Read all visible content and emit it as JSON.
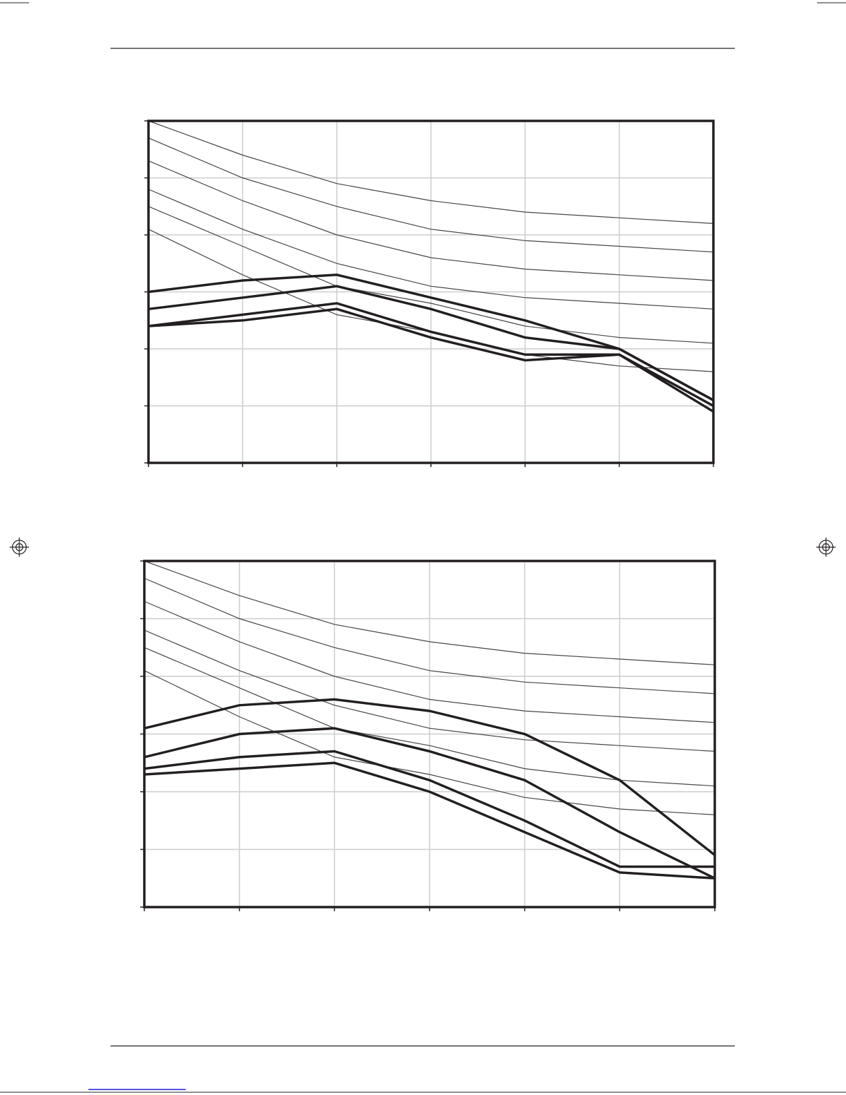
{
  "colors": {
    "ink": "#231f20",
    "grid": "#cccccc",
    "thin_line": "#444444",
    "link": "#1b1bd0"
  },
  "chart_data": [
    {
      "type": "line",
      "title": "",
      "xlabel": "",
      "ylabel": "",
      "x": [
        0,
        1,
        2,
        3,
        4,
        5,
        6
      ],
      "xlim": [
        0,
        6
      ],
      "ylim": [
        0,
        6
      ],
      "grid": true,
      "series": [
        {
          "style": "thin",
          "values": [
            6.0,
            5.4,
            4.9,
            4.6,
            4.4,
            4.3,
            4.2
          ]
        },
        {
          "style": "thin",
          "values": [
            5.7,
            5.0,
            4.5,
            4.1,
            3.9,
            3.8,
            3.7
          ]
        },
        {
          "style": "thin",
          "values": [
            5.3,
            4.6,
            4.0,
            3.6,
            3.4,
            3.3,
            3.2
          ]
        },
        {
          "style": "thin",
          "values": [
            4.8,
            4.1,
            3.5,
            3.1,
            2.9,
            2.8,
            2.7
          ]
        },
        {
          "style": "thin",
          "values": [
            4.5,
            3.8,
            3.1,
            2.8,
            2.4,
            2.2,
            2.1
          ]
        },
        {
          "style": "thin",
          "values": [
            4.1,
            3.3,
            2.6,
            2.3,
            1.9,
            1.7,
            1.6
          ]
        },
        {
          "style": "thick",
          "values": [
            3.0,
            3.2,
            3.3,
            2.9,
            2.5,
            2.0,
            1.1
          ]
        },
        {
          "style": "thick",
          "values": [
            2.7,
            2.9,
            3.1,
            2.7,
            2.2,
            2.0,
            1.1
          ]
        },
        {
          "style": "thick",
          "values": [
            2.4,
            2.6,
            2.8,
            2.3,
            1.9,
            1.9,
            0.9
          ]
        },
        {
          "style": "thick",
          "values": [
            2.4,
            2.5,
            2.7,
            2.2,
            1.8,
            1.9,
            1.0
          ]
        }
      ]
    },
    {
      "type": "line",
      "title": "",
      "xlabel": "",
      "ylabel": "",
      "x": [
        0,
        1,
        2,
        3,
        4,
        5,
        6
      ],
      "xlim": [
        0,
        6
      ],
      "ylim": [
        0,
        6
      ],
      "grid": true,
      "series": [
        {
          "style": "thin",
          "values": [
            6.0,
            5.4,
            4.9,
            4.6,
            4.4,
            4.3,
            4.2
          ]
        },
        {
          "style": "thin",
          "values": [
            5.7,
            5.0,
            4.5,
            4.1,
            3.9,
            3.8,
            3.7
          ]
        },
        {
          "style": "thin",
          "values": [
            5.3,
            4.6,
            4.0,
            3.6,
            3.4,
            3.3,
            3.2
          ]
        },
        {
          "style": "thin",
          "values": [
            4.8,
            4.1,
            3.5,
            3.1,
            2.9,
            2.8,
            2.7
          ]
        },
        {
          "style": "thin",
          "values": [
            4.5,
            3.8,
            3.1,
            2.8,
            2.4,
            2.2,
            2.1
          ]
        },
        {
          "style": "thin",
          "values": [
            4.1,
            3.3,
            2.6,
            2.3,
            1.9,
            1.7,
            1.6
          ]
        },
        {
          "style": "thick",
          "values": [
            3.1,
            3.5,
            3.6,
            3.4,
            3.0,
            2.2,
            0.9
          ]
        },
        {
          "style": "thick",
          "values": [
            2.6,
            3.0,
            3.1,
            2.7,
            2.2,
            1.3,
            0.5
          ]
        },
        {
          "style": "thick",
          "values": [
            2.4,
            2.6,
            2.7,
            2.2,
            1.5,
            0.7,
            0.7
          ]
        },
        {
          "style": "thick",
          "values": [
            2.3,
            2.4,
            2.5,
            2.0,
            1.3,
            0.6,
            0.5
          ]
        }
      ]
    }
  ]
}
